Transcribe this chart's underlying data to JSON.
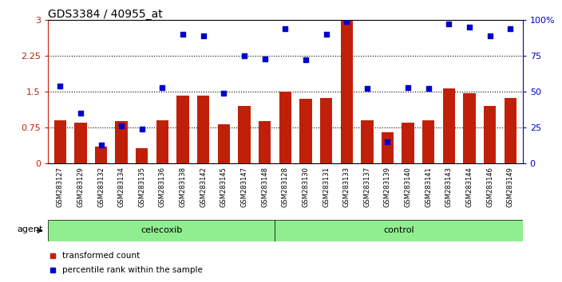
{
  "title": "GDS3384 / 40955_at",
  "samples": [
    "GSM283127",
    "GSM283129",
    "GSM283132",
    "GSM283134",
    "GSM283135",
    "GSM283136",
    "GSM283138",
    "GSM283142",
    "GSM283145",
    "GSM283147",
    "GSM283148",
    "GSM283128",
    "GSM283130",
    "GSM283131",
    "GSM283133",
    "GSM283137",
    "GSM283139",
    "GSM283140",
    "GSM283141",
    "GSM283143",
    "GSM283144",
    "GSM283146",
    "GSM283149"
  ],
  "bar_values": [
    0.9,
    0.85,
    0.35,
    0.88,
    0.32,
    0.9,
    1.42,
    1.42,
    0.82,
    1.2,
    0.88,
    1.5,
    1.35,
    1.37,
    2.98,
    0.9,
    0.65,
    0.85,
    0.9,
    1.57,
    1.46,
    1.2,
    1.37
  ],
  "percentile_values": [
    54,
    35,
    13,
    26,
    24,
    53,
    90,
    89,
    49,
    75,
    73,
    94,
    72,
    90,
    99,
    52,
    15,
    53,
    52,
    97,
    95,
    89,
    94
  ],
  "celecoxib_count": 11,
  "control_count": 12,
  "bar_color": "#C0200A",
  "dot_color": "#0000CD",
  "left_ylim": [
    0,
    3
  ],
  "left_yticks": [
    0,
    0.75,
    1.5,
    2.25,
    3
  ],
  "left_ytick_labels": [
    "0",
    "0.75",
    "1.5",
    "2.25",
    "3"
  ],
  "right_ylim": [
    0,
    100
  ],
  "right_yticks": [
    0,
    25,
    50,
    75,
    100
  ],
  "right_ytick_labels": [
    "0",
    "25",
    "50",
    "75",
    "100%"
  ],
  "hline_values": [
    0.75,
    1.5,
    2.25
  ],
  "celecoxib_label": "celecoxib",
  "control_label": "control",
  "agent_label": "agent",
  "legend_bar_label": "transformed count",
  "legend_dot_label": "percentile rank within the sample",
  "gray_color": "#C8C8C8",
  "agent_box_color": "#90EE90",
  "title_fontsize": 10
}
